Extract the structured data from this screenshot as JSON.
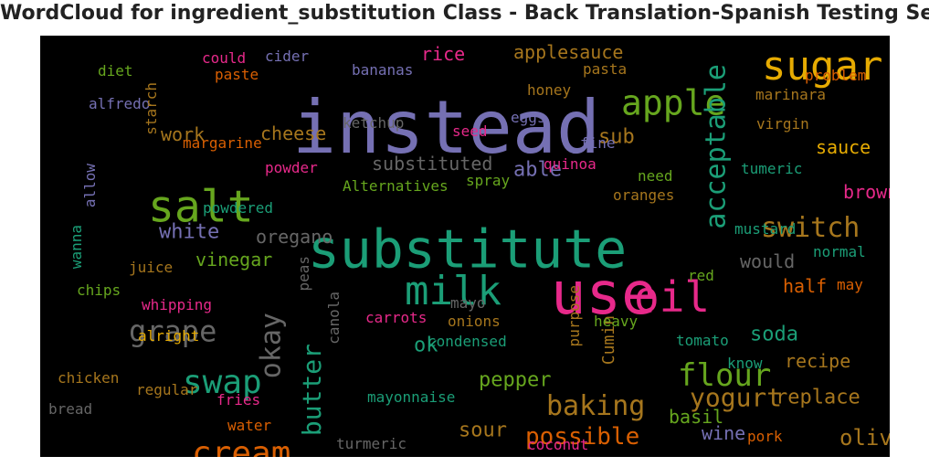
{
  "chart_data": {
    "type": "wordcloud",
    "title": "WordCloud for ingredient_substitution Class - Back Translation-Spanish Testing Set",
    "background": "#000000",
    "colormap": "Dark2",
    "words": [
      {
        "text": "instead",
        "color": "#7570b3"
      },
      {
        "text": "substitute",
        "color": "#1b9e77"
      },
      {
        "text": "use",
        "color": "#e7298a"
      },
      {
        "text": "sugar",
        "color": "#e6ab02"
      },
      {
        "text": "oil",
        "color": "#e7298a"
      },
      {
        "text": "salt",
        "color": "#66a61e"
      },
      {
        "text": "milk",
        "color": "#1b9e77"
      },
      {
        "text": "apple",
        "color": "#66a61e"
      },
      {
        "text": "acceptable",
        "color": "#1b9e77"
      },
      {
        "text": "cream",
        "color": "#d95f02"
      },
      {
        "text": "swap",
        "color": "#1b9e77"
      },
      {
        "text": "grape",
        "color": "#666666"
      },
      {
        "text": "okay",
        "color": "#666666"
      },
      {
        "text": "flour",
        "color": "#66a61e"
      },
      {
        "text": "butter",
        "color": "#1b9e77"
      },
      {
        "text": "baking",
        "color": "#a6761d"
      },
      {
        "text": "switch",
        "color": "#a6761d"
      },
      {
        "text": "yogurt",
        "color": "#a6761d"
      },
      {
        "text": "possible",
        "color": "#d95f02"
      },
      {
        "text": "white",
        "color": "#7570b3"
      },
      {
        "text": "olive",
        "color": "#a6761d"
      },
      {
        "text": "pepper",
        "color": "#66a61e"
      },
      {
        "text": "substituted",
        "color": "#666666"
      },
      {
        "text": "sub",
        "color": "#a6761d"
      },
      {
        "text": "replace",
        "color": "#a6761d"
      },
      {
        "text": "sour",
        "color": "#a6761d"
      },
      {
        "text": "able",
        "color": "#7570b3"
      },
      {
        "text": "soda",
        "color": "#1b9e77"
      },
      {
        "text": "cheese",
        "color": "#a6761d"
      },
      {
        "text": "oregano",
        "color": "#666666"
      },
      {
        "text": "recipe",
        "color": "#a6761d"
      },
      {
        "text": "vinegar",
        "color": "#66a61e"
      },
      {
        "text": "ok",
        "color": "#1b9e77"
      },
      {
        "text": "rice",
        "color": "#e7298a"
      },
      {
        "text": "applesauce",
        "color": "#a6761d"
      },
      {
        "text": "work",
        "color": "#a6761d"
      },
      {
        "text": "brown",
        "color": "#e7298a"
      },
      {
        "text": "sauce",
        "color": "#e6ab02"
      },
      {
        "text": "would",
        "color": "#666666"
      },
      {
        "text": "half",
        "color": "#d95f02"
      },
      {
        "text": "basil",
        "color": "#66a61e"
      },
      {
        "text": "wine",
        "color": "#7570b3"
      },
      {
        "text": "Cumin",
        "color": "#a6761d"
      },
      {
        "text": "alfredo",
        "color": "#7570b3"
      },
      {
        "text": "diet",
        "color": "#66a61e"
      },
      {
        "text": "could",
        "color": "#e7298a"
      },
      {
        "text": "cider",
        "color": "#7570b3"
      },
      {
        "text": "paste",
        "color": "#d95f02"
      },
      {
        "text": "bananas",
        "color": "#7570b3"
      },
      {
        "text": "pasta",
        "color": "#a6761d"
      },
      {
        "text": "problem",
        "color": "#d95f02"
      },
      {
        "text": "honey",
        "color": "#a6761d"
      },
      {
        "text": "marinara",
        "color": "#a6761d"
      },
      {
        "text": "starch",
        "color": "#a6761d"
      },
      {
        "text": "ketchup",
        "color": "#666666"
      },
      {
        "text": "eggs",
        "color": "#7570b3"
      },
      {
        "text": "virgin",
        "color": "#a6761d"
      },
      {
        "text": "seed",
        "color": "#e7298a"
      },
      {
        "text": "margarine",
        "color": "#d95f02"
      },
      {
        "text": "fine",
        "color": "#7570b3"
      },
      {
        "text": "powder",
        "color": "#e7298a"
      },
      {
        "text": "quinoa",
        "color": "#e7298a"
      },
      {
        "text": "need",
        "color": "#66a61e"
      },
      {
        "text": "tumeric",
        "color": "#1b9e77"
      },
      {
        "text": "allow",
        "color": "#7570b3"
      },
      {
        "text": "Alternatives",
        "color": "#66a61e"
      },
      {
        "text": "spray",
        "color": "#66a61e"
      },
      {
        "text": "oranges",
        "color": "#a6761d"
      },
      {
        "text": "powdered",
        "color": "#1b9e77"
      },
      {
        "text": "mustard",
        "color": "#1b9e77"
      },
      {
        "text": "wanna",
        "color": "#1b9e77"
      },
      {
        "text": "juice",
        "color": "#a6761d"
      },
      {
        "text": "normal",
        "color": "#1b9e77"
      },
      {
        "text": "red",
        "color": "#66a61e"
      },
      {
        "text": "peas",
        "color": "#666666"
      },
      {
        "text": "may",
        "color": "#d95f02"
      },
      {
        "text": "chips",
        "color": "#66a61e"
      },
      {
        "text": "whipping",
        "color": "#e7298a"
      },
      {
        "text": "canola",
        "color": "#666666"
      },
      {
        "text": "mayo",
        "color": "#666666"
      },
      {
        "text": "purpose",
        "color": "#a6761d"
      },
      {
        "text": "carrots",
        "color": "#e7298a"
      },
      {
        "text": "onions",
        "color": "#a6761d"
      },
      {
        "text": "heavy",
        "color": "#66a61e"
      },
      {
        "text": "alright",
        "color": "#e6ab02"
      },
      {
        "text": "condensed",
        "color": "#1b9e77"
      },
      {
        "text": "tomato",
        "color": "#1b9e77"
      },
      {
        "text": "chicken",
        "color": "#a6761d"
      },
      {
        "text": "know",
        "color": "#1b9e77"
      },
      {
        "text": "regular",
        "color": "#a6761d"
      },
      {
        "text": "mayonnaise",
        "color": "#1b9e77"
      },
      {
        "text": "bread",
        "color": "#666666"
      },
      {
        "text": "fries",
        "color": "#e7298a"
      },
      {
        "text": "water",
        "color": "#d95f02"
      },
      {
        "text": "turmeric",
        "color": "#666666"
      },
      {
        "text": "coconut",
        "color": "#e7298a"
      },
      {
        "text": "pork",
        "color": "#d95f02"
      }
    ]
  }
}
